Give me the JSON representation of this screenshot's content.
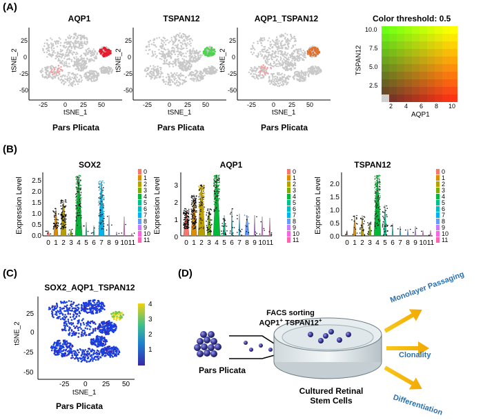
{
  "panels": {
    "a": "(A)",
    "b": "(B)",
    "c": "(C)",
    "d": "(D)"
  },
  "colors": {
    "grey_cells": "#c8c8c8",
    "red": "#e8192c",
    "green": "#4cd44c",
    "blue_cells": "#1a3fe0",
    "yellow": "#f0d814",
    "arrow": "#f5b800",
    "d_text_blue": "#2a6fb0"
  },
  "panel_a": {
    "tsne_titles": [
      "AQP1",
      "TSPAN12",
      "AQP1_TSPAN12"
    ],
    "subtitle": "Pars Plicata",
    "x_label": "tSNE_1",
    "y_label": "tSNE_2",
    "x_ticks": [
      "-25",
      "0",
      "25",
      "50"
    ],
    "y_ticks": [
      "25",
      "0",
      "-25",
      "-50"
    ],
    "threshold": {
      "title": "Color threshold: 0.5",
      "x_label": "AQP1",
      "y_label": "TSPAN12",
      "x_ticks": [
        "2",
        "4",
        "6",
        "8",
        "10"
      ],
      "y_ticks": [
        "10.0",
        "7.5",
        "5.0",
        "2.5"
      ]
    }
  },
  "panel_b": {
    "genes": [
      "SOX2",
      "AQP1",
      "TSPAN12"
    ],
    "y_label": "Expression Level",
    "clusters": [
      "0",
      "1",
      "2",
      "3",
      "4",
      "5",
      "6",
      "7",
      "8",
      "9",
      "10",
      "11"
    ],
    "sox2_y_ticks": [
      "2.5",
      "2.0",
      "1.5",
      "1.0",
      "0.5",
      "0.0"
    ],
    "aqp1_y_ticks": [
      "3",
      "2",
      "1",
      "0"
    ],
    "tspan_y_ticks": [
      "2.0",
      "1.5",
      "1.0",
      "0.5",
      "0.0"
    ],
    "legend_colors": [
      "#f8766d",
      "#de8c00",
      "#b79f00",
      "#7cae00",
      "#00ba38",
      "#00c08b",
      "#00bfc4",
      "#00b4f0",
      "#619cff",
      "#c77cff",
      "#f564e3",
      "#ff64b0"
    ]
  },
  "panel_c": {
    "title": "SOX2_AQP1_TSPAN12",
    "subtitle": "Pars Plicata",
    "x_label": "tSNE_1",
    "y_label": "tSNE_2",
    "x_ticks": [
      "-25",
      "0",
      "25",
      "50"
    ],
    "y_ticks": [
      "25",
      "0",
      "-25",
      "-50"
    ],
    "color_ticks": [
      "4",
      "3",
      "2",
      "1"
    ]
  },
  "panel_d": {
    "facs_line1": "FACS sorting",
    "facs_line2_a": "AQP1",
    "facs_line2_b": "TSPAN12",
    "sup": "+",
    "source": "Pars Plicata",
    "dish_label_1": "Cultured Retinal",
    "dish_label_2": "Stem Cells",
    "outcomes": [
      "Monolayer Passaging",
      "Clonality",
      "Differentiation"
    ]
  }
}
